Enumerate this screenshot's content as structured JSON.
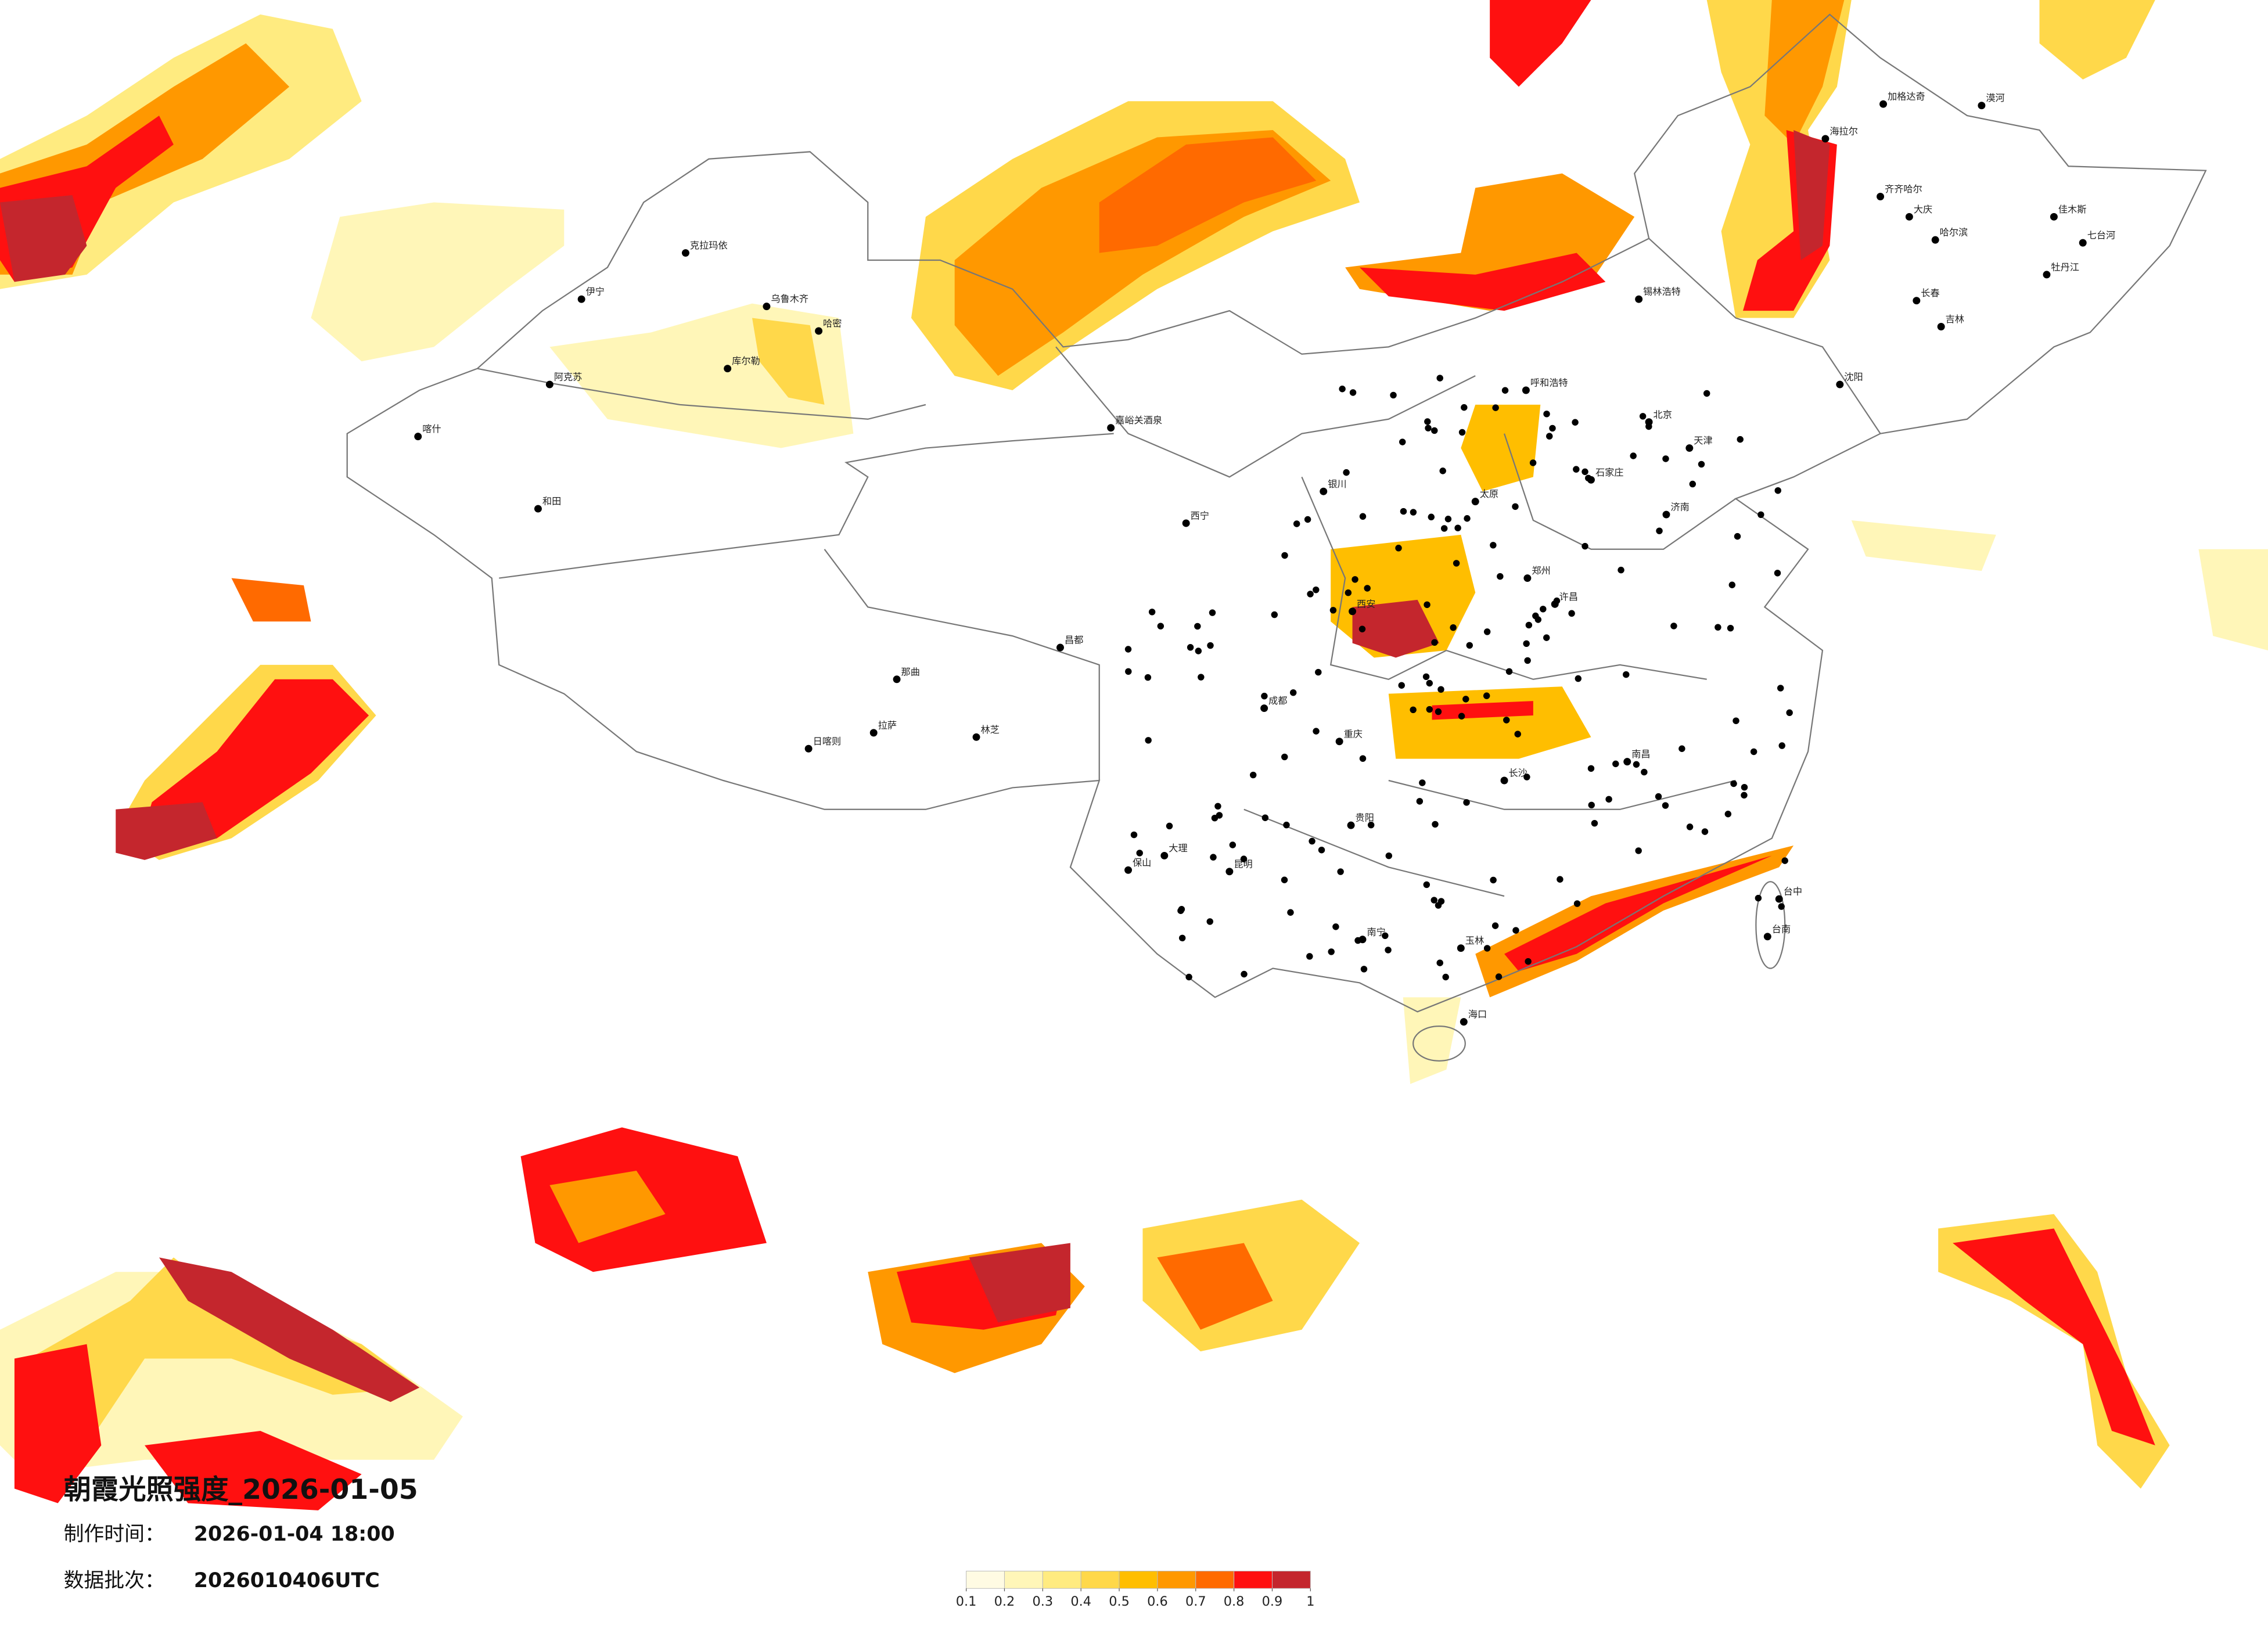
{
  "title": "朝霞光照强度_2026-01-05",
  "made_label": "制作时间：",
  "made_time": "2026-01-04 18:00",
  "batch_label": "数据批次：",
  "batch": "2026010406UTC",
  "legend": {
    "colors": [
      "#fffbe3",
      "#fff6b8",
      "#ffeb80",
      "#ffd84a",
      "#ffbe00",
      "#ff9800",
      "#ff6a00",
      "#ff1010",
      "#c4262d"
    ],
    "ticks": [
      0.1,
      0.2,
      0.3,
      0.4,
      0.5,
      0.6,
      0.7,
      0.8,
      0.9,
      1
    ]
  },
  "cities": [
    "克拉玛依",
    "乌鲁木齐",
    "伊宁",
    "阿克苏",
    "库尔勒",
    "哈密",
    "喀什",
    "和田",
    "日喀则",
    "拉萨",
    "林芝",
    "那曲",
    "昌都",
    "西宁",
    "嘉峪关酒泉",
    "银川",
    "西安",
    "成都",
    "重庆",
    "贵阳",
    "昆明",
    "大理",
    "保山",
    "南宁",
    "玉林",
    "海口",
    "长沙",
    "南昌",
    "郑州",
    "许昌",
    "太原",
    "石家庄",
    "北京",
    "天津",
    "济南",
    "呼和浩特",
    "锡林浩特",
    "沈阳",
    "长春",
    "吉林",
    "哈尔滨",
    "齐齐哈尔",
    "大庆",
    "海拉尔",
    "加格达奇",
    "漠河",
    "佳木斯",
    "牡丹江",
    "七台河",
    "台中",
    "台南"
  ]
}
